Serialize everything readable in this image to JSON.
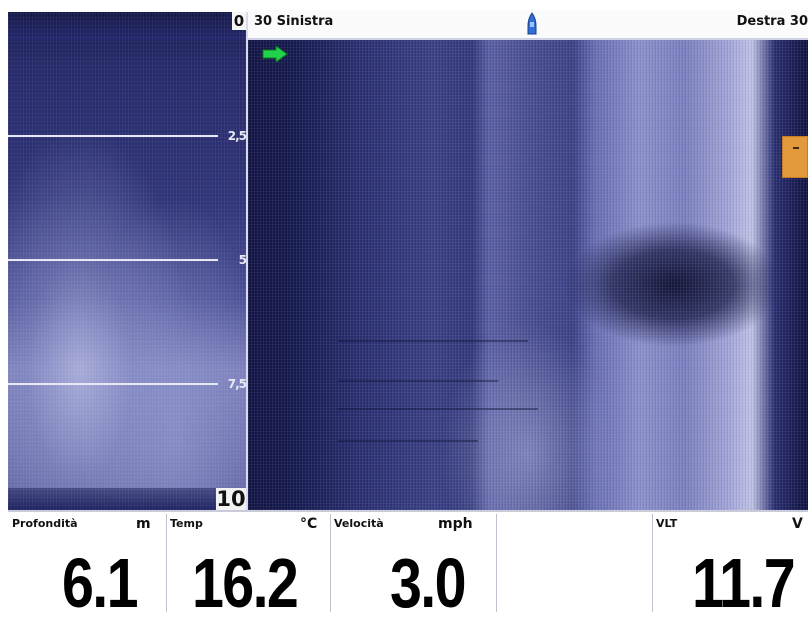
{
  "header": {
    "left_label": "30 Sinistra",
    "right_label": "Destra 30"
  },
  "depth_scale": {
    "top": "0",
    "ticks": [
      "2,5",
      "5",
      "7,5"
    ],
    "bottom": "10"
  },
  "data_boxes": [
    {
      "title": "Profondità",
      "unit": "m",
      "value": "6.1"
    },
    {
      "title": "Temp",
      "unit": "°C",
      "value": "16.2"
    },
    {
      "title": "Velocità",
      "unit": "mph",
      "value": "3.0"
    },
    {
      "title": "",
      "unit": "",
      "value": ""
    },
    {
      "title": "VLT",
      "unit": "V",
      "value": "11.7"
    }
  ],
  "colors": {
    "water_dark": "#121545",
    "water_light": "#c0c3e6",
    "marker_orange": "#e39a3c",
    "arrow_green": "#22d24a"
  },
  "icons": [
    "boat-icon",
    "cursor-arrow-icon",
    "waypoint-marker-icon"
  ]
}
